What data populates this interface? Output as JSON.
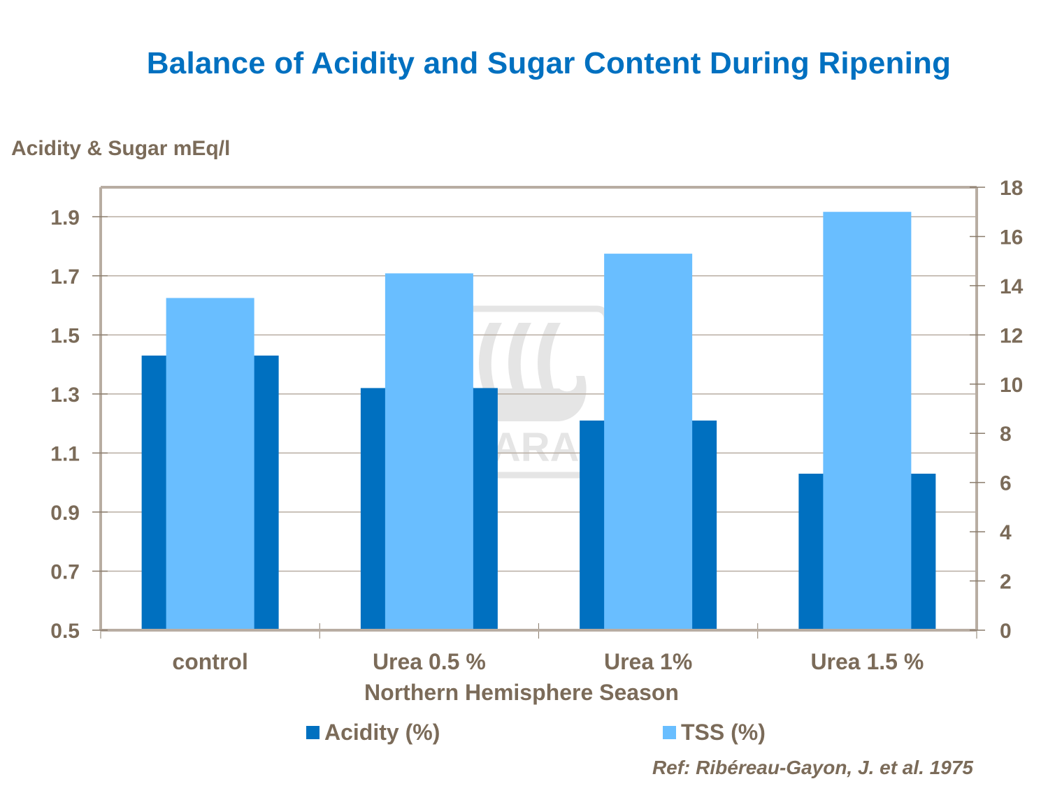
{
  "chart_data": {
    "type": "bar",
    "title": "Balance of Acidity and Sugar Content During Ripening",
    "ylabel": "Acidity & Sugar mEq/l",
    "xlabel": "Northern Hemisphere Season",
    "categories": [
      "control",
      "Urea 0.5 %",
      "Urea 1%",
      "Urea 1.5 %"
    ],
    "series": [
      {
        "name": "Acidity (%)",
        "axis": "left",
        "color": "#0070C0",
        "values": [
          1.43,
          1.32,
          1.21,
          1.03
        ]
      },
      {
        "name": "TSS (%)",
        "axis": "right",
        "color": "#69BEFF",
        "values": [
          13.5,
          14.5,
          15.3,
          17.0
        ]
      }
    ],
    "y_left": {
      "min": 0.5,
      "max": 2.0,
      "ticks": [
        0.5,
        0.7,
        0.9,
        1.1,
        1.3,
        1.5,
        1.7,
        1.9
      ],
      "tick_labels": [
        "0.5",
        "0.7",
        "0.9",
        "1.1",
        "1.3",
        "1.5",
        "1.7",
        "1.9"
      ]
    },
    "y_right": {
      "min": 0,
      "max": 18,
      "ticks": [
        0,
        2,
        4,
        6,
        8,
        10,
        12,
        14,
        16,
        18
      ],
      "tick_labels": [
        "0",
        "2",
        "4",
        "6",
        "8",
        "10",
        "12",
        "14",
        "16",
        "18"
      ]
    },
    "grid": true,
    "legend_position": "bottom",
    "reference": "Ref: Ribéreau-Gayon, J. et al. 1975",
    "watermark": "YARA"
  },
  "colors": {
    "title": "#0070C0",
    "text": "#7B6B59",
    "axis": "#B8ADA2",
    "grid": "#B8ADA2"
  }
}
